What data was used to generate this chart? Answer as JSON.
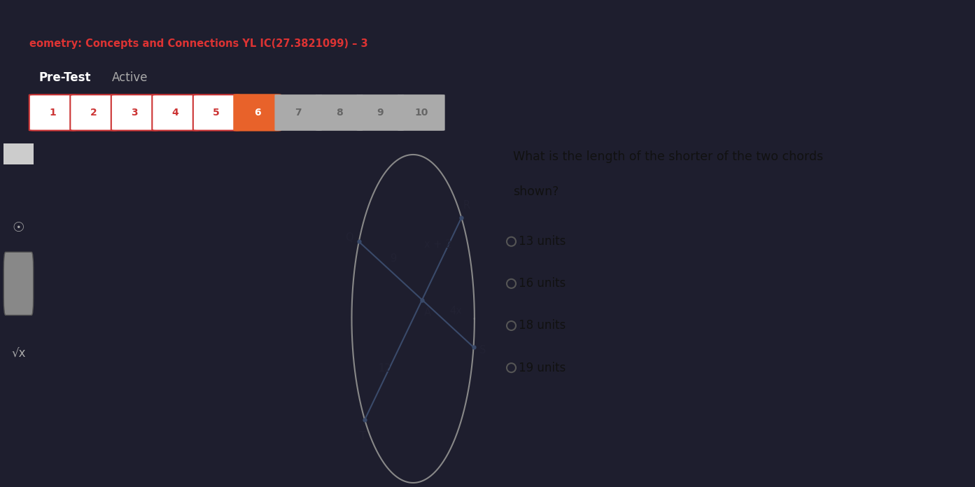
{
  "header_color": "#1e1e2e",
  "header_text": "eometry: Concepts and Connections YL IC(27.3821099) – 3",
  "header_text_color": "#dd3333",
  "pretest_label": "Pre-Test",
  "active_label": "Active",
  "nav_buttons": [
    "1",
    "2",
    "3",
    "4",
    "5",
    "6",
    "7",
    "8",
    "9",
    "10"
  ],
  "active_button": 6,
  "active_btn_color": "#e8622a",
  "active_btn_text_color": "#ffffff",
  "inactive_btn_color": "#ffffff",
  "inactive_btn_text_color": "#cc3333",
  "inactive_btn_border": "#cc3333",
  "gray_btn_color": "#aaaaaa",
  "gray_btn_text_color": "#666666",
  "grayed_buttons": [
    7,
    8,
    9,
    10
  ],
  "main_bg": "#ede9e0",
  "left_sidebar_color": "#2a2a3a",
  "chord_color": "#3a4a6a",
  "label_color": "#222233",
  "circle_color": "#888888",
  "question_text_line1": "What is the length of the shorter of the two chords",
  "question_text_line2": "shown?",
  "choices": [
    "13 units",
    "16 units",
    "18 units",
    "19 units"
  ]
}
